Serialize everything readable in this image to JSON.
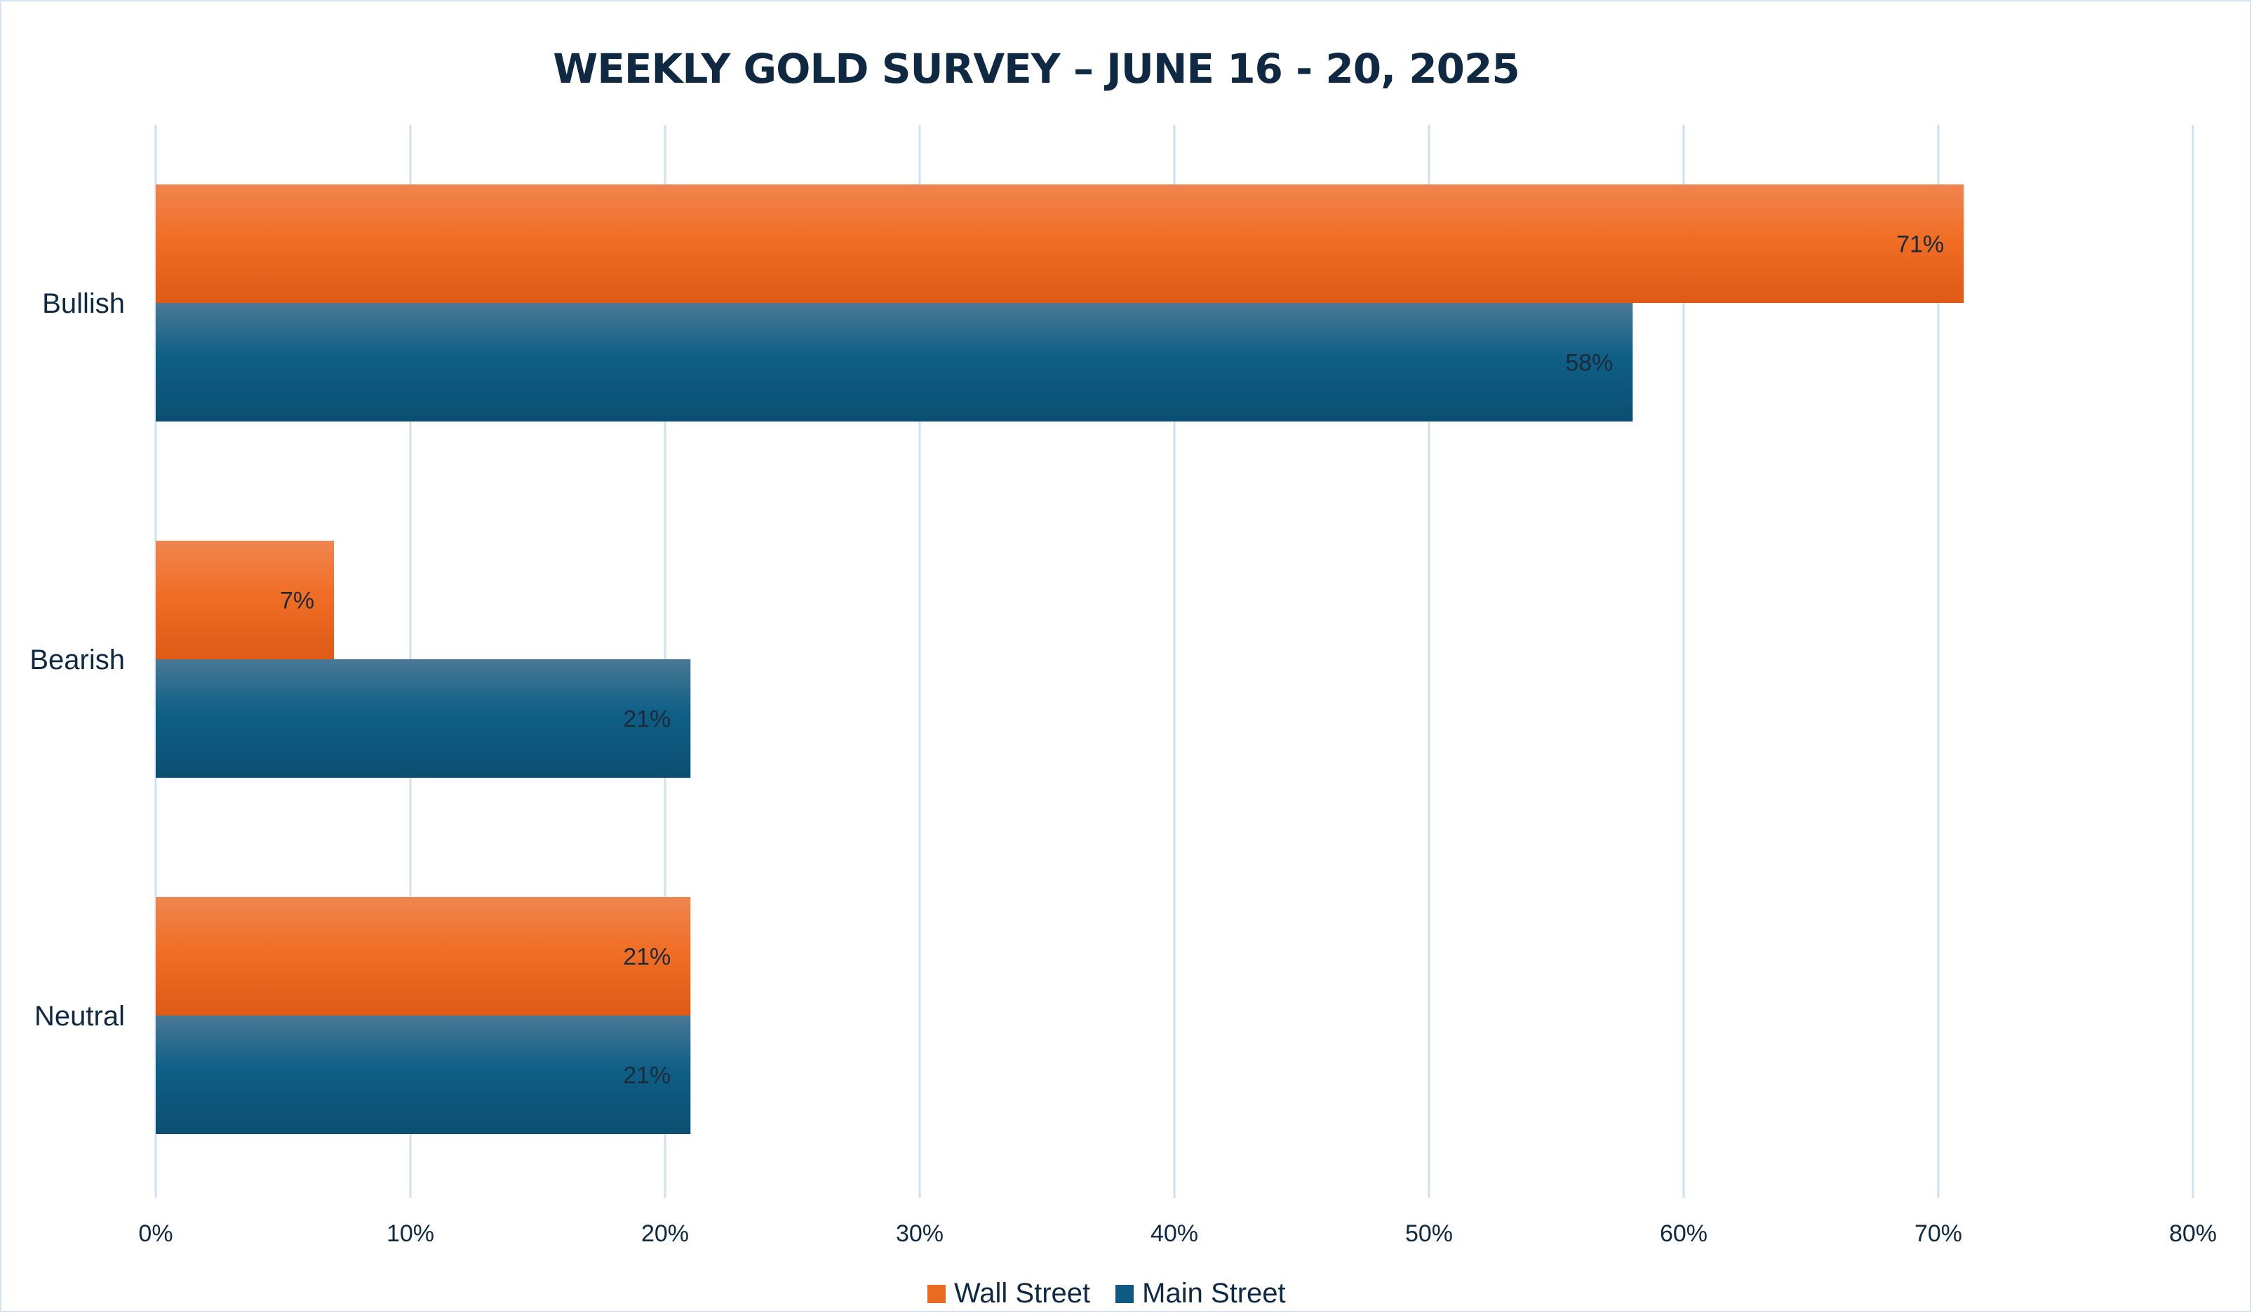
{
  "chart_data": {
    "type": "bar",
    "orientation": "horizontal",
    "title": "WEEKLY GOLD SURVEY – JUNE 16 - 20, 2025",
    "categories": [
      "Bullish",
      "Bearish",
      "Neutral"
    ],
    "series": [
      {
        "name": "Wall Street",
        "values": [
          71,
          7,
          21
        ],
        "labels": [
          "71%",
          "7%",
          "21%"
        ],
        "color": "#ea6a22"
      },
      {
        "name": "Main Street",
        "values": [
          58,
          21,
          21
        ],
        "labels": [
          "58%",
          "21%",
          "21%"
        ],
        "color": "#0f5a82"
      }
    ],
    "xlim": [
      0,
      80
    ],
    "x_ticks": [
      "0%",
      "10%",
      "20%",
      "30%",
      "40%",
      "50%",
      "60%",
      "70%",
      "80%"
    ],
    "grid": true,
    "legend_position": "bottom"
  }
}
